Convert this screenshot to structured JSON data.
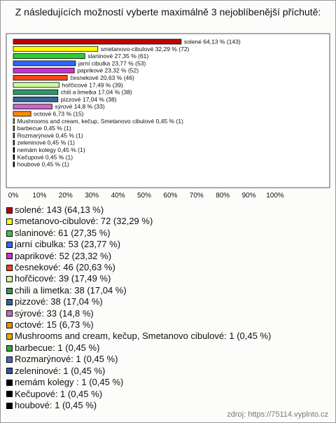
{
  "chart_data": {
    "type": "bar",
    "orientation": "horizontal",
    "title": "Z následujících možností vyberte maximálně 3 nejoblíbenější příchutě:",
    "values": [
      64.13,
      32.29,
      27.35,
      23.77,
      23.32,
      20.63,
      17.49,
      17.04,
      17.04,
      14.8,
      6.73,
      0.45,
      0.45,
      0.45,
      0.45,
      0.45,
      0.45,
      0.45
    ],
    "value_labels": [
      "solené 64,13 % (143)",
      "smetanovo-cibulové 32,29 % (72)",
      "slaninové 27,35 % (61)",
      "jarní cibulka 23,77 % (53)",
      "paprikové 23,32 % (52)",
      "česnekové 20,63 % (46)",
      "hořčicové 17,49 % (39)",
      "chili a limetka 17,04 % (38)",
      "pizzové 17,04 % (38)",
      "sýrové 14,8 % (33)",
      "octové 6,73 % (15)",
      "Mushrooms and cream, kečup, Smetanovo cibulové 0,45 % (1)",
      "barbecue 0,45 % (1)",
      "Rozmarýnové 0,45 % (1)",
      "zeleninové 0,45 % (1)",
      "nemám kolegy  0,45 % (1)",
      "Kečupové 0,45 % (1)",
      "houbové 0,45 % (1)"
    ],
    "legend_labels": [
      "solené: 143 (64,13 %)",
      "smetanovo-cibulové: 72 (32,29 %)",
      "slaninové: 61 (27,35 %)",
      "jarní cibulka: 53 (23,77 %)",
      "paprikové: 52 (23,32 %)",
      "česnekové: 46 (20,63 %)",
      "hořčicové: 39 (17,49 %)",
      "chili a limetka: 38 (17,04 %)",
      "pizzové: 38 (17,04 %)",
      "sýrové: 33 (14,8 %)",
      "octové: 15 (6,73 %)",
      "Mushrooms and cream, kečup, Smetanovo cibulové: 1 (0,45 %)",
      "barbecue: 1 (0,45 %)",
      "Rozmarýnové: 1 (0,45 %)",
      "zeleninové: 1 (0,45 %)",
      "nemám kolegy : 1 (0,45 %)",
      "Kečupové: 1 (0,45 %)",
      "houbové: 1 (0,45 %)"
    ],
    "colors": [
      "#c00000",
      "#ffff00",
      "#33cc33",
      "#3366ff",
      "#cc33cc",
      "#ff4411",
      "#ccff99",
      "#339966",
      "#336699",
      "#cc66cc",
      "#ff8800",
      "#e6a800",
      "#33aa33",
      "#4466cc",
      "#3355aa",
      "#000000",
      "#000000",
      "#000000"
    ],
    "xlim": [
      0,
      100
    ],
    "xticks": [
      {
        "value": 0,
        "label": "0%"
      },
      {
        "value": 10,
        "label": "10%"
      },
      {
        "value": 20,
        "label": "20%"
      },
      {
        "value": 30,
        "label": "30%"
      },
      {
        "value": 40,
        "label": "40%"
      },
      {
        "value": 50,
        "label": "50%"
      },
      {
        "value": 60,
        "label": "60%"
      },
      {
        "value": 70,
        "label": "70%"
      },
      {
        "value": 80,
        "label": "80%"
      },
      {
        "value": 90,
        "label": "90%"
      },
      {
        "value": 100,
        "label": "100%"
      }
    ],
    "source": "zdroj: https://75114.vyplnto.cz"
  }
}
